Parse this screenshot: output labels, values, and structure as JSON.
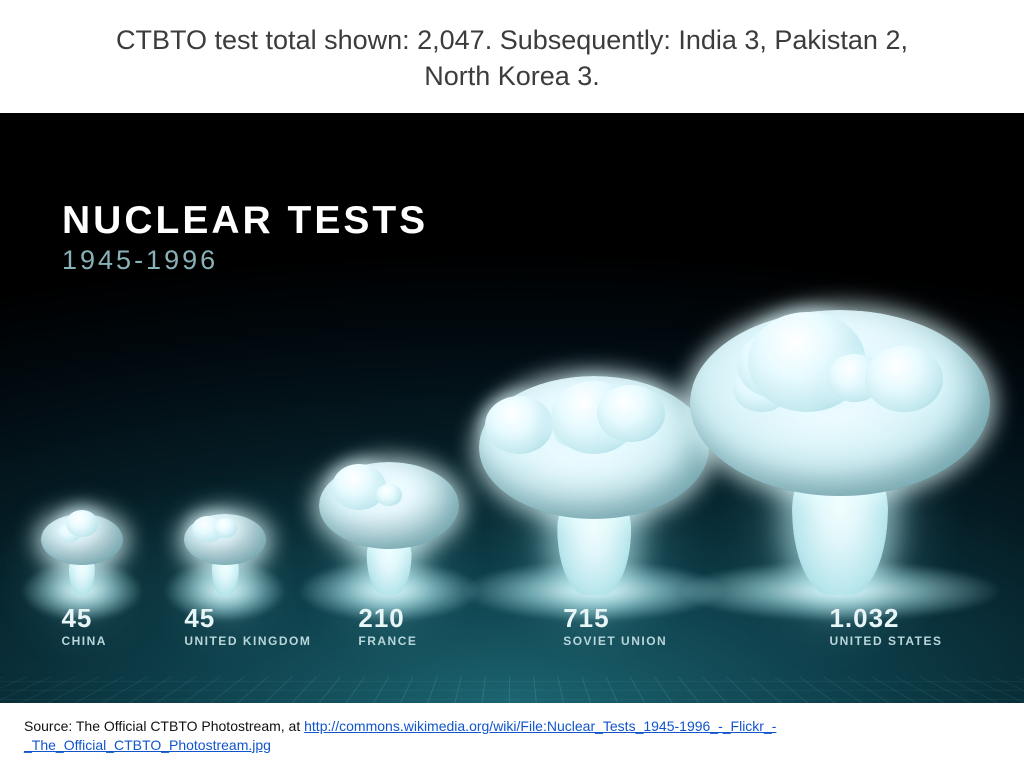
{
  "title": "CTBTO test total shown: 2,047.  Subsequently: India 3, Pakistan 2, North Korea 3.",
  "graphic": {
    "heading_main": "NUCLEAR TESTS",
    "heading_sub": "1945-1996",
    "background_gradient_stops": [
      "#1c6470",
      "#0d3d48",
      "#051c24",
      "#010a10",
      "#000000"
    ],
    "grid_line_color": "rgba(120,210,220,0.22)",
    "heading_color": "#ffffff",
    "subheading_color": "#88b2b8",
    "label_num_color": "#e8f6f8",
    "label_ctry_color": "#b9d6da",
    "label_num_fontsize": 26,
    "label_ctry_fontsize": 12,
    "series": [
      {
        "value": "45",
        "country": "CHINA",
        "x_pct": 8.0,
        "label_x_pct": 6.0,
        "cloud_h": 78,
        "cap_w": 82,
        "glow_w": 120
      },
      {
        "value": "45",
        "country": "UNITED KINGDOM",
        "x_pct": 22.0,
        "label_x_pct": 18.0,
        "cloud_h": 78,
        "cap_w": 82,
        "glow_w": 120
      },
      {
        "value": "210",
        "country": "FRANCE",
        "x_pct": 38.0,
        "label_x_pct": 35.0,
        "cloud_h": 120,
        "cap_w": 140,
        "glow_w": 180
      },
      {
        "value": "715",
        "country": "SOVIET UNION",
        "x_pct": 58.0,
        "label_x_pct": 55.0,
        "cloud_h": 200,
        "cap_w": 230,
        "glow_w": 260
      },
      {
        "value": "1.032",
        "country": "UNITED STATES",
        "x_pct": 82.0,
        "label_x_pct": 81.0,
        "cloud_h": 260,
        "cap_w": 300,
        "glow_w": 320
      }
    ]
  },
  "source_prefix": "Source: The Official CTBTO Photostream, at  ",
  "source_link_text": "http://commons.wikimedia.org/wiki/File:Nuclear_Tests_1945-1996_-_Flickr_-_The_Official_CTBTO_Photostream.jpg",
  "source_link_href": "http://commons.wikimedia.org/wiki/File:Nuclear_Tests_1945-1996_-_Flickr_-_The_Official_CTBTO_Photostream.jpg"
}
